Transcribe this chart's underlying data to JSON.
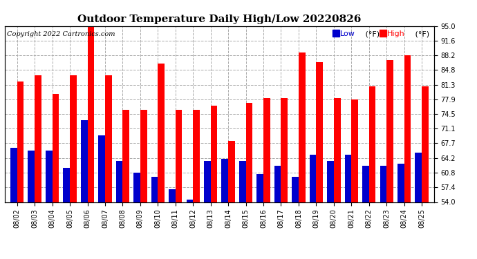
{
  "title": "Outdoor Temperature Daily High/Low 20220826",
  "copyright": "Copyright 2022 Cartronics.com",
  "legend_low_label": "Low",
  "legend_low_unit": " (°F)",
  "legend_high_label": "High",
  "legend_high_unit": " (°F)",
  "dates": [
    "08/02",
    "08/03",
    "08/04",
    "08/05",
    "08/06",
    "08/07",
    "08/08",
    "08/09",
    "08/10",
    "08/11",
    "08/12",
    "08/13",
    "08/14",
    "08/15",
    "08/16",
    "08/17",
    "08/18",
    "08/19",
    "08/20",
    "08/21",
    "08/22",
    "08/23",
    "08/24",
    "08/25"
  ],
  "highs": [
    82.0,
    83.5,
    79.2,
    83.5,
    95.0,
    83.5,
    75.5,
    75.5,
    86.2,
    75.5,
    75.5,
    76.5,
    68.2,
    77.0,
    78.2,
    78.2,
    88.8,
    86.5,
    78.2,
    77.9,
    81.0,
    87.0,
    88.2,
    81.0
  ],
  "lows": [
    66.6,
    66.0,
    66.0,
    62.0,
    73.0,
    69.5,
    63.5,
    60.8,
    59.8,
    57.0,
    54.5,
    63.5,
    64.0,
    63.5,
    60.5,
    62.5,
    59.8,
    65.0,
    63.5,
    65.0,
    62.5,
    62.5,
    63.0,
    65.5
  ],
  "ymin": 54.0,
  "ymax": 95.0,
  "yticks": [
    54.0,
    57.4,
    60.8,
    64.2,
    67.7,
    71.1,
    74.5,
    77.9,
    81.3,
    84.8,
    88.2,
    91.6,
    95.0
  ],
  "high_color": "#ff0000",
  "low_color": "#0000cc",
  "bar_width": 0.38,
  "grid_color": "#aaaaaa",
  "bg_color": "#ffffff",
  "title_fontsize": 11,
  "tick_fontsize": 7,
  "copyright_fontsize": 7
}
